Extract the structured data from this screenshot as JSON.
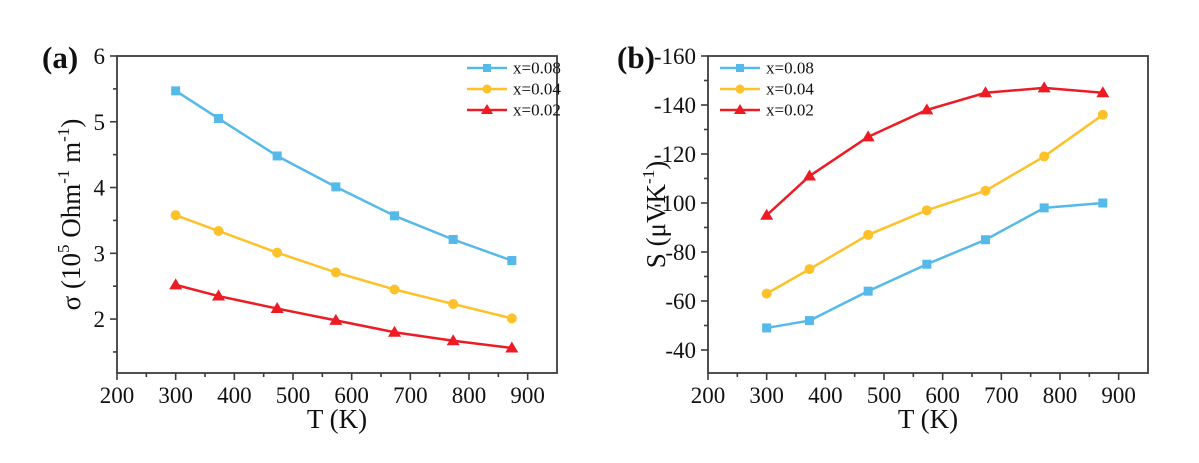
{
  "figure": {
    "background": "#ffffff",
    "panel_a_label": "(a)",
    "panel_b_label": "(b)"
  },
  "colors": {
    "blue": "#55B9EA",
    "yellow": "#FDC12A",
    "red": "#ED1C24",
    "axis": "#3c3c3c",
    "text": "#111111"
  },
  "chart_data": [
    {
      "type": "line",
      "panel_label": "(a)",
      "xlabel": "T (K)",
      "ylabel_segments": [
        [
          "σ (10",
          0
        ],
        [
          "5",
          1
        ],
        " dummy_removed"
      ],
      "ylabel_parts": [
        [
          "σ (10",
          0
        ],
        [
          "5",
          1
        ],
        [
          " Ohm",
          0
        ],
        [
          "-1",
          1
        ],
        [
          " m",
          0
        ],
        [
          "-1",
          1
        ],
        [
          ")",
          0
        ]
      ],
      "x": [
        300,
        373,
        473,
        573,
        673,
        773,
        873
      ],
      "series": [
        {
          "name": "x=0.08",
          "marker": "square",
          "color_key": "blue",
          "values": [
            5.47,
            5.05,
            4.48,
            4.01,
            3.57,
            3.21,
            2.89
          ]
        },
        {
          "name": "x=0.04",
          "marker": "circle",
          "color_key": "yellow",
          "values": [
            3.58,
            3.34,
            3.01,
            2.71,
            2.45,
            2.23,
            2.01
          ]
        },
        {
          "name": "x=0.02",
          "marker": "triangle",
          "color_key": "red",
          "values": [
            2.52,
            2.35,
            2.16,
            1.98,
            1.8,
            1.67,
            1.56
          ]
        }
      ],
      "xlim": [
        200,
        950
      ],
      "ylim": [
        1.18,
        6
      ],
      "xticks": [
        200,
        300,
        400,
        500,
        600,
        700,
        800,
        900
      ],
      "yticks": [
        2,
        3,
        4,
        5,
        6
      ],
      "x_minor_step": 50,
      "y_minor_step": 0.5,
      "grid": false,
      "legend_pos": "top-right"
    },
    {
      "type": "line",
      "panel_label": "(b)",
      "xlabel": "T (K)",
      "ylabel_parts": [
        [
          "S (μVK",
          0
        ],
        [
          "-1",
          1
        ],
        [
          ")",
          0
        ]
      ],
      "x": [
        300,
        373,
        473,
        573,
        673,
        773,
        873
      ],
      "series": [
        {
          "name": "x=0.08",
          "marker": "square",
          "color_key": "blue",
          "values": [
            -49,
            -52,
            -64,
            -75,
            -85,
            -98,
            -100
          ]
        },
        {
          "name": "x=0.04",
          "marker": "circle",
          "color_key": "yellow",
          "values": [
            -63,
            -73,
            -87,
            -97,
            -105,
            -119,
            -136
          ]
        },
        {
          "name": "x=0.02",
          "marker": "triangle",
          "color_key": "red",
          "values": [
            -95,
            -111,
            -127,
            -138,
            -145,
            -147,
            -145
          ]
        }
      ],
      "xlim": [
        200,
        950
      ],
      "ylim": [
        -30.6,
        -160
      ],
      "xticks": [
        200,
        300,
        400,
        500,
        600,
        700,
        800,
        900
      ],
      "yticks": [
        -40,
        -60,
        -80,
        -100,
        -120,
        -140,
        -160
      ],
      "x_minor_step": 50,
      "y_minor_step": 10,
      "grid": false,
      "legend_pos": "top-left"
    }
  ]
}
